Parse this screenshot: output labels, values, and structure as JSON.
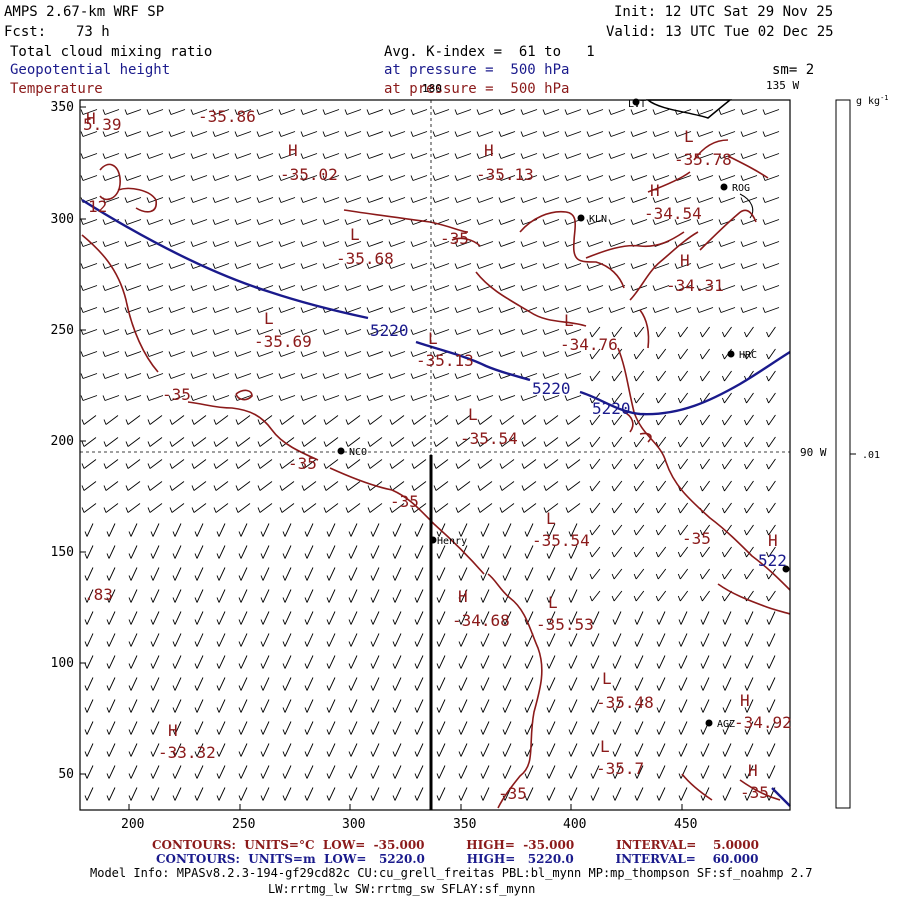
{
  "header": {
    "model_title": "AMPS 2.67-km WRF SP",
    "fcst_label": "Fcst:",
    "fcst_value": "73 h",
    "init": "Init: 12 UTC Sat 29 Nov 25",
    "valid": "Valid: 13 UTC Tue 02 Dec 25",
    "field1": "Total cloud mixing ratio",
    "field2": "Geopotential height",
    "field3": "Temperature",
    "avg": "Avg. K-index =  61 to   1",
    "pressure1": "at pressure =  500 hPa",
    "pressure2": "at pressure =  500 hPa",
    "sm": "sm= 2"
  },
  "map": {
    "x_ticks": [
      "200",
      "250",
      "300",
      "350",
      "400",
      "450"
    ],
    "y_ticks": [
      "350",
      "300",
      "250",
      "200",
      "150",
      "100",
      "50"
    ],
    "lon_label_top": "180",
    "lon_label_135": "135 W",
    "lon_label_90": "90 W",
    "stations": [
      {
        "name": "LVT"
      },
      {
        "name": "ROG"
      },
      {
        "name": "KLN"
      },
      {
        "name": "HRC"
      },
      {
        "name": "NCO"
      },
      {
        "name": "Henry"
      },
      {
        "name": "AGZ"
      }
    ],
    "temp_labels": [
      "-35.86",
      "-35.02",
      "-35.13",
      "-35.78",
      "-34.54",
      "-35.68",
      "-35",
      "-34.31",
      "-35.69",
      "-35.13",
      "-34.76",
      "-35.54",
      "-35",
      "-35",
      "-35.54",
      "-35",
      "-34.68",
      "-35.53",
      "-35.48",
      "-33.32",
      "-34.92",
      "-35.7",
      "-35",
      "-35",
      "-35",
      "5.39",
      "12",
      ".83"
    ],
    "hl_marks": [
      "H",
      "H",
      "H",
      "L",
      "L",
      "L",
      "H",
      "H",
      "L",
      "L",
      "L",
      "L",
      "H",
      "L",
      "H",
      "L",
      "L",
      "H",
      "H",
      "H"
    ],
    "height_labels": [
      "5220",
      "5220",
      "5220",
      "522"
    ]
  },
  "colorbar": {
    "units": "g kg",
    "units_exp": "-1",
    "tick": ".01"
  },
  "footer": {
    "temp_contours": "CONTOURS:  UNITS=°C  LOW=  -35.000          HIGH=  -35.000          INTERVAL=    5.0000",
    "height_contours": "CONTOURS:  UNITS=m  LOW=   5220.0          HIGH=   5220.0          INTERVAL=    60.000",
    "model_info": "Model Info: MPASv8.2.3-194-gf29cd82c CU:cu_grell_freitas PBL:bl_mynn MP:mp_thompson SF:sf_noahmp 2.7",
    "model_info2": "LW:rrtmg_lw SW:rrtmg_sw SFLAY:sf_mynn"
  },
  "colors": {
    "temperature": "#8b1a1a",
    "height": "#1a1a8c",
    "barbs": "#000000"
  }
}
